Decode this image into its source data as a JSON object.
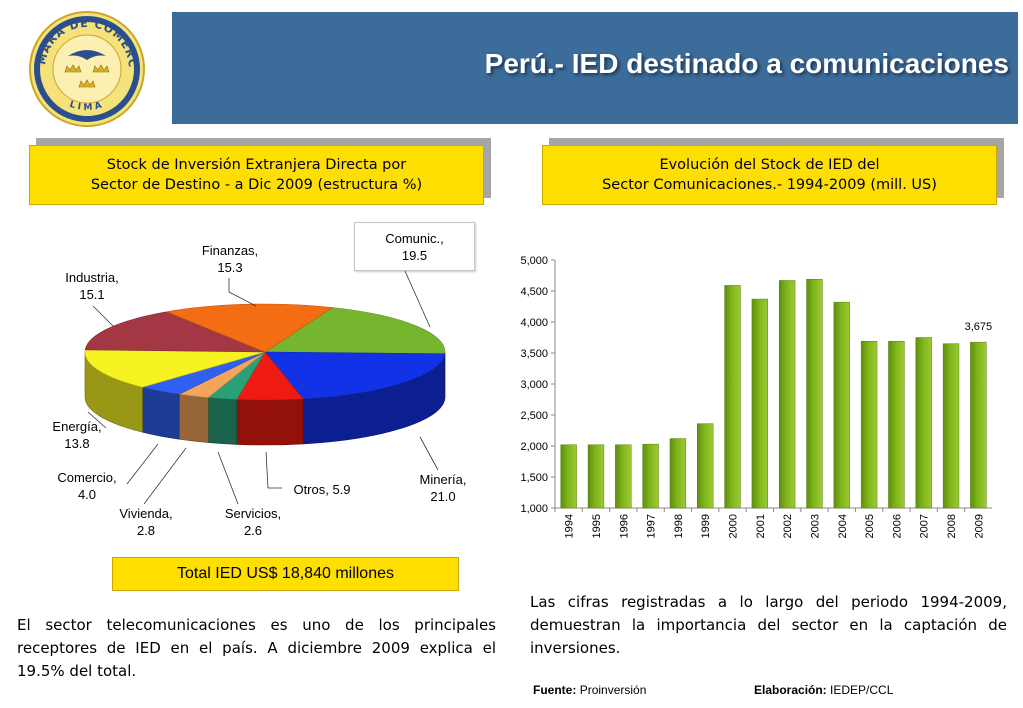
{
  "header": {
    "title": "Perú.- IED destinado a comunicaciones",
    "logo_text_top": "CÁMARA DE COMERCIO",
    "logo_text_bottom": "LIMA"
  },
  "pie_panel": {
    "title_line1": "Stock de Inversión Extranjera Directa por",
    "title_line2": "Sector de Destino - a Dic 2009 (estructura %)"
  },
  "bar_panel": {
    "title_line1": "Evolución del Stock de IED del",
    "title_line2": "Sector Comunicaciones.- 1994-2009 (mill. US)"
  },
  "chart_data": [
    {
      "type": "pie",
      "title": "Stock de Inversión Extranjera Directa por Sector de Destino - a Dic 2009 (estructura %)",
      "slices": [
        {
          "name": "Comunic.",
          "value": 19.5,
          "label_line1": "Comunic.,",
          "label_line2": "19.5",
          "color": "#76b52e"
        },
        {
          "name": "Minería",
          "value": 21.0,
          "label_line1": "Minería,",
          "label_line2": "21.0",
          "color": "#1232e8"
        },
        {
          "name": "Otros",
          "value": 5.9,
          "label_line1": "Otros, 5.9",
          "label_line2": "",
          "color": "#ef1a12"
        },
        {
          "name": "Servicios",
          "value": 2.6,
          "label_line1": "Servicios,",
          "label_line2": "2.6",
          "color": "#2aa079"
        },
        {
          "name": "Vivienda",
          "value": 2.8,
          "label_line1": "Vivienda,",
          "label_line2": "2.8",
          "color": "#f3a55b"
        },
        {
          "name": "Comercio",
          "value": 4.0,
          "label_line1": "Comercio,",
          "label_line2": "4.0",
          "color": "#3060f0"
        },
        {
          "name": "Energía",
          "value": 13.8,
          "label_line1": "Energía,",
          "label_line2": "13.8",
          "color": "#f7f322"
        },
        {
          "name": "Industria",
          "value": 15.1,
          "label_line1": "Industria,",
          "label_line2": "15.1",
          "color": "#a33744"
        },
        {
          "name": "Finanzas",
          "value": 15.3,
          "label_line1": "Finanzas,",
          "label_line2": "15.3",
          "color": "#f46d12"
        }
      ],
      "total_label": "Total IED US$ 18,840 millones"
    },
    {
      "type": "bar",
      "title": "Evolución del Stock de IED del Sector Comunicaciones.- 1994-2009 (mill. US)",
      "categories": [
        "1994",
        "1995",
        "1996",
        "1997",
        "1998",
        "1999",
        "2000",
        "2001",
        "2002",
        "2003",
        "2004",
        "2005",
        "2006",
        "2007",
        "2008",
        "2009"
      ],
      "values": [
        2020,
        2020,
        2020,
        2030,
        2120,
        2360,
        4590,
        4370,
        4670,
        4690,
        4320,
        3690,
        3690,
        3750,
        3650,
        3675
      ],
      "ylim": [
        1000,
        5000
      ],
      "yticks": [
        "1,000",
        "1,500",
        "2,000",
        "2,500",
        "3,000",
        "3,500",
        "4,000",
        "4,500",
        "5,000"
      ],
      "ytick_values": [
        1000,
        1500,
        2000,
        2500,
        3000,
        3500,
        4000,
        4500,
        5000
      ],
      "data_label": {
        "index": 15,
        "text": "3,675"
      },
      "bar_color": "#7fb51a",
      "grid": false
    }
  ],
  "notes": {
    "left": "El sector telecomunicaciones es uno de los principales receptores de IED en el país. A diciembre 2009 explica el  19.5% del total.",
    "right": "Las cifras registradas a lo largo del periodo 1994-2009, demuestran la importancia del sector en la captación de inversiones."
  },
  "footer": {
    "source_label": "Fuente:",
    "source_value": "Proinversión",
    "elab_label": "Elaboración:",
    "elab_value": "IEDEP/CCL"
  }
}
